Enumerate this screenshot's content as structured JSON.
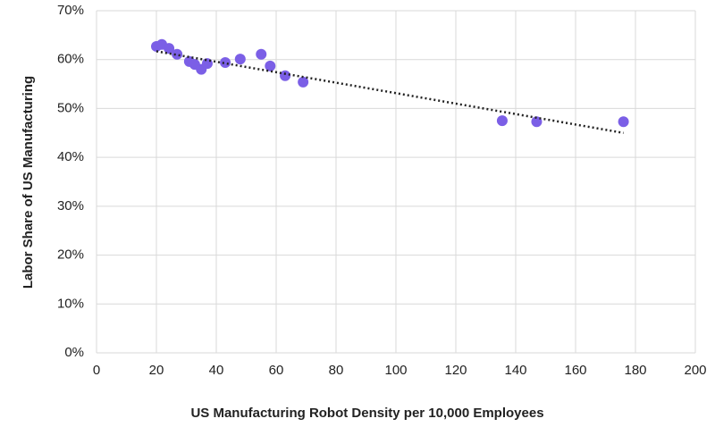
{
  "chart_data": {
    "type": "scatter",
    "x_label": "US Manufacturing Robot Density per 10,000 Employees",
    "y_label": "Labor Share of US Manufacturing",
    "series": [
      {
        "color": "#7b5fe6",
        "x": [
          20,
          21.8,
          24.2,
          26.9,
          31,
          32.8,
          35,
          37,
          43,
          48,
          55,
          58,
          63,
          69,
          135.5,
          147,
          176
        ],
        "values": [
          62.7,
          63.1,
          62.3,
          61.1,
          59.6,
          59.0,
          58.0,
          59.2,
          59.4,
          60.1,
          61.1,
          58.7,
          56.7,
          55.4,
          47.5,
          47.3,
          47.3
        ]
      }
    ],
    "trendline": {
      "color": "#222222",
      "x": [
        20,
        176
      ],
      "values": [
        61.7,
        45.0
      ]
    },
    "xlim": [
      0,
      200
    ],
    "xticks": [
      0,
      20,
      40,
      60,
      80,
      100,
      120,
      140,
      160,
      180,
      200
    ],
    "ylim": [
      0,
      70
    ],
    "yticks": [
      {
        "value": 0,
        "label": "0%"
      },
      {
        "value": 10,
        "label": "10%"
      },
      {
        "value": 20,
        "label": "20%"
      },
      {
        "value": 30,
        "label": "30%"
      },
      {
        "value": 40,
        "label": "40%"
      },
      {
        "value": 50,
        "label": "50%"
      },
      {
        "value": 60,
        "label": "60%"
      },
      {
        "value": 70,
        "label": "70%"
      }
    ],
    "grid": true
  }
}
